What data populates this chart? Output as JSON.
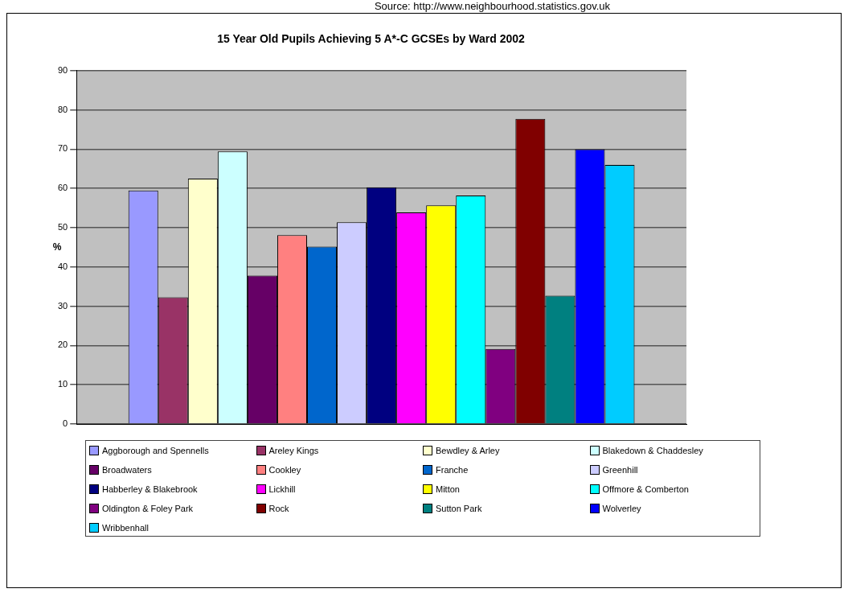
{
  "chart_data": {
    "type": "bar",
    "title": "15 Year Old Pupils Achieving 5 A*-C GCSEs by Ward 2002",
    "ylabel": "%",
    "annotations": [
      "Source: http://www.neighbourhood.statistics.gov.uk"
    ],
    "categories": [
      null
    ],
    "series": [
      {
        "name": "Aggborough and Spennells",
        "color": "#9999ff",
        "values": [
          59.5
        ]
      },
      {
        "name": "Areley Kings",
        "color": "#993366",
        "values": [
          32.3
        ]
      },
      {
        "name": "Bewdley & Arley",
        "color": "#ffffcc",
        "values": [
          62.5
        ]
      },
      {
        "name": "Blakedown & Chaddesley",
        "color": "#ccffff",
        "values": [
          69.4
        ]
      },
      {
        "name": "Broadwaters",
        "color": "#660066",
        "values": [
          37.8
        ]
      },
      {
        "name": "Cookley",
        "color": "#ff8080",
        "values": [
          48.1
        ]
      },
      {
        "name": "Franche",
        "color": "#0066cc",
        "values": [
          45.2
        ]
      },
      {
        "name": "Greenhill",
        "color": "#ccccff",
        "values": [
          51.4
        ]
      },
      {
        "name": "Habberley & Blakebrook",
        "color": "#000080",
        "values": [
          60.3
        ]
      },
      {
        "name": "Lickhill",
        "color": "#ff00ff",
        "values": [
          53.9
        ]
      },
      {
        "name": "Mitton",
        "color": "#ffff00",
        "values": [
          55.7
        ]
      },
      {
        "name": "Offmore & Comberton",
        "color": "#00ffff",
        "values": [
          58.2
        ]
      },
      {
        "name": "Oldington & Foley Park",
        "color": "#800080",
        "values": [
          19.1
        ]
      },
      {
        "name": "Rock",
        "color": "#800000",
        "values": [
          77.7
        ]
      },
      {
        "name": "Sutton Park",
        "color": "#008080",
        "values": [
          32.7
        ]
      },
      {
        "name": "Wolverley",
        "color": "#0000ff",
        "values": [
          70.0
        ]
      },
      {
        "name": "Wribbenhall",
        "color": "#00ccff",
        "values": [
          66.0
        ]
      }
    ],
    "ylim": [
      0,
      90
    ],
    "yticks": [
      0,
      10,
      20,
      30,
      40,
      50,
      60,
      70,
      80,
      90
    ],
    "grid": "y",
    "legend": "bottom"
  }
}
